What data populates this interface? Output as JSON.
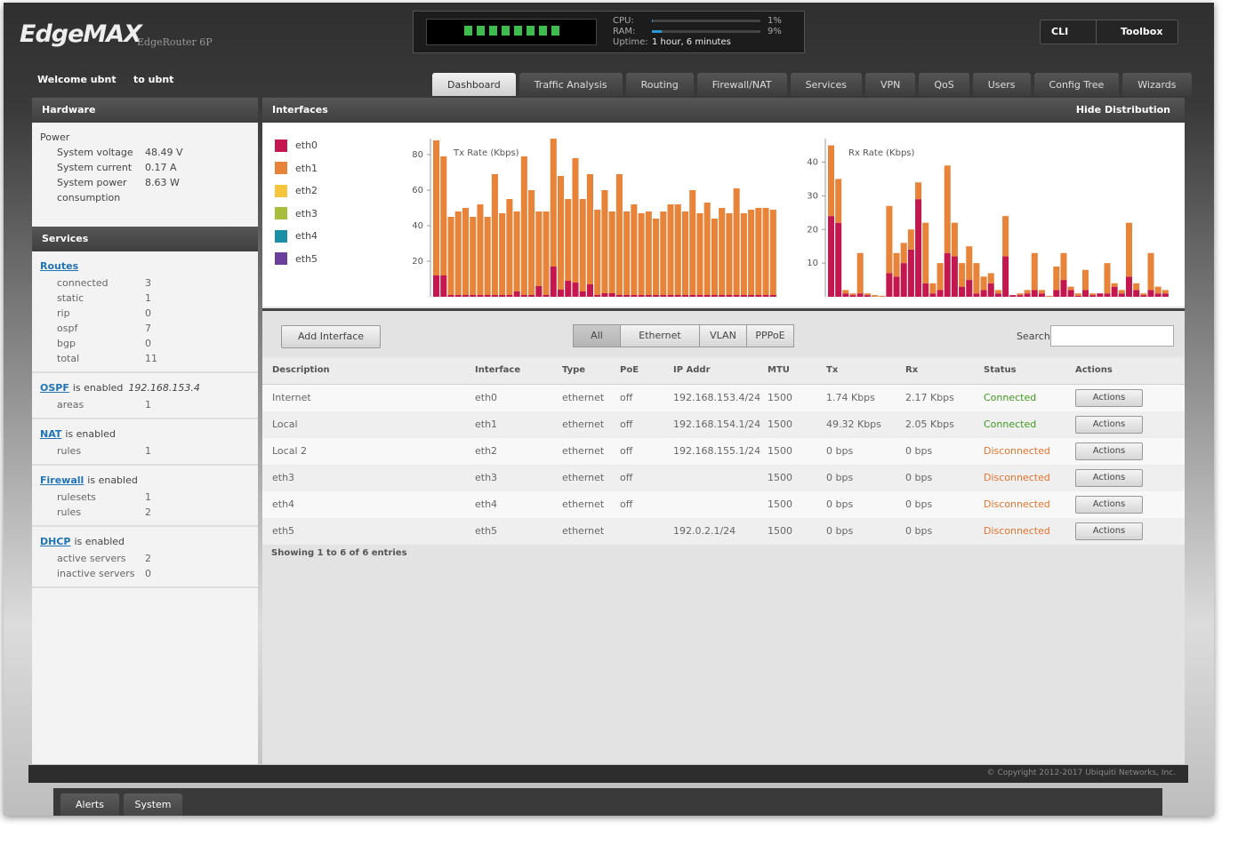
{
  "header": {
    "logo": "EdgeMAX",
    "model": "EdgeRouter 6P",
    "cpu_label": "CPU:",
    "cpu": {
      "value": 1,
      "label": "1%"
    },
    "ram_label": "RAM:",
    "ram": {
      "value": 9,
      "label": "9%"
    },
    "uptime_label": "Uptime:",
    "uptime": "1 hour, 6 minutes",
    "cli": "CLI",
    "toolbox": "Toolbox"
  },
  "nav": {
    "welcome": "Welcome ubnt",
    "to": "to ubnt",
    "tabs": [
      "Dashboard",
      "Traffic Analysis",
      "Routing",
      "Firewall/NAT",
      "Services",
      "VPN",
      "QoS",
      "Users",
      "Config Tree",
      "Wizards"
    ],
    "active": 0
  },
  "hardware": {
    "title": "Hardware",
    "power": "Power",
    "rows": [
      [
        "System voltage",
        "48.49 V"
      ],
      [
        "System current",
        "0.17 A"
      ],
      [
        "System power consumption",
        "8.63 W"
      ]
    ]
  },
  "services": {
    "title": "Services",
    "groups": [
      {
        "link": "Routes",
        "rows": [
          [
            "connected",
            3
          ],
          [
            "static",
            1
          ],
          [
            "rip",
            0
          ],
          [
            "ospf",
            7
          ],
          [
            "bgp",
            0
          ],
          [
            "total",
            11
          ]
        ]
      },
      {
        "link": "OSPF",
        "text": "is enabled",
        "extra": "192.168.153.4",
        "rows": [
          [
            "areas",
            1
          ]
        ]
      },
      {
        "link": "NAT",
        "text": "is enabled",
        "rows": [
          [
            "rules",
            1
          ]
        ]
      },
      {
        "link": "Firewall",
        "text": "is enabled",
        "rows": [
          [
            "rulesets",
            1
          ],
          [
            "rules",
            2
          ]
        ]
      },
      {
        "link": "DHCP",
        "text": "is enabled",
        "rows": [
          [
            "active servers",
            2
          ],
          [
            "inactive servers",
            0
          ]
        ]
      }
    ]
  },
  "interfaces": {
    "title": "Interfaces",
    "hide": "Hide Distribution",
    "legend": [
      {
        "name": "eth0",
        "color": "#c4174f"
      },
      {
        "name": "eth1",
        "color": "#e8843a"
      },
      {
        "name": "eth2",
        "color": "#f5c53b"
      },
      {
        "name": "eth3",
        "color": "#a8bd3a"
      },
      {
        "name": "eth4",
        "color": "#1a8fa5"
      },
      {
        "name": "eth5",
        "color": "#6b3f9c"
      }
    ]
  },
  "chart_data": [
    {
      "type": "bar",
      "stacked": true,
      "title": "Tx Rate (Kbps)",
      "ylim": [
        0,
        89
      ],
      "yticks": [
        20,
        40,
        60,
        80
      ],
      "series": [
        {
          "name": "eth0",
          "color": "#c4174f",
          "values": [
            12,
            12,
            1,
            1,
            1,
            1,
            1,
            1,
            1,
            1,
            1,
            3,
            1,
            1,
            6,
            1,
            17,
            4,
            9,
            8,
            3,
            7,
            1,
            2,
            2,
            1,
            1,
            1,
            1,
            1,
            1,
            1,
            1,
            1,
            1,
            1,
            1,
            1,
            1,
            1,
            1,
            1,
            1,
            1,
            1,
            1,
            1
          ]
        },
        {
          "name": "eth1",
          "color": "#e8843a",
          "values": [
            76,
            67,
            44,
            47,
            49,
            44,
            51,
            44,
            68,
            46,
            54,
            45,
            78,
            59,
            42,
            47,
            72,
            64,
            46,
            70,
            52,
            62,
            48,
            58,
            46,
            68,
            47,
            51,
            46,
            47,
            43,
            47,
            51,
            51,
            47,
            59,
            46,
            52,
            43,
            49,
            46,
            60,
            46,
            48,
            49,
            49,
            48
          ]
        }
      ]
    },
    {
      "type": "bar",
      "stacked": true,
      "title": "Rx Rate (Kbps)",
      "ylim": [
        0,
        47
      ],
      "yticks": [
        10,
        20,
        30,
        40
      ],
      "series": [
        {
          "name": "eth0",
          "color": "#c4174f",
          "values": [
            24,
            22,
            1,
            0.5,
            1,
            0.5,
            0,
            0,
            7,
            6,
            10,
            14,
            29,
            4,
            1,
            2,
            13,
            12,
            3,
            5,
            1,
            2,
            4,
            1,
            12,
            0.5,
            0.5,
            1,
            2,
            1,
            0,
            2,
            5,
            2,
            0.3,
            2,
            0.5,
            1,
            1,
            3,
            1,
            6,
            2,
            0.5,
            2,
            1,
            1
          ]
        },
        {
          "name": "eth1",
          "color": "#e8843a",
          "values": [
            21,
            13,
            1,
            0.5,
            12,
            0.5,
            0.5,
            0.3,
            20,
            7,
            6,
            6,
            5,
            18,
            3,
            8,
            26,
            10,
            7,
            10,
            9,
            4,
            3,
            1,
            12,
            0,
            0.5,
            1,
            11,
            1,
            0.3,
            7,
            8,
            1,
            0.7,
            6,
            0.5,
            0,
            9,
            1,
            1,
            16,
            2,
            0.5,
            11,
            2,
            1
          ]
        }
      ]
    }
  ],
  "table": {
    "add": "Add Interface",
    "filters": [
      "All",
      "Ethernet",
      "VLAN",
      "PPPoE"
    ],
    "search": "Search",
    "columns": [
      "Description",
      "Interface",
      "Type",
      "PoE",
      "IP Addr",
      "MTU",
      "Tx",
      "Rx",
      "Status",
      "Actions"
    ],
    "rows": [
      [
        "Internet",
        "eth0",
        "ethernet",
        "off",
        "192.168.153.4/24",
        1500,
        "1.74 Kbps",
        "2.17 Kbps",
        "Connected"
      ],
      [
        "Local",
        "eth1",
        "ethernet",
        "off",
        "192.168.154.1/24",
        1500,
        "49.32 Kbps",
        "2.05 Kbps",
        "Connected"
      ],
      [
        "Local 2",
        "eth2",
        "ethernet",
        "off",
        "192.168.155.1/24",
        1500,
        "0 bps",
        "0 bps",
        "Disconnected"
      ],
      [
        "eth3",
        "eth3",
        "ethernet",
        "off",
        null,
        1500,
        "0 bps",
        "0 bps",
        "Disconnected"
      ],
      [
        "eth4",
        "eth4",
        "ethernet",
        "off",
        null,
        1500,
        "0 bps",
        "0 bps",
        "Disconnected"
      ],
      [
        "eth5",
        "eth5",
        "ethernet",
        null,
        "192.0.2.1/24",
        1500,
        "0 bps",
        "0 bps",
        "Disconnected"
      ]
    ],
    "status_colors": [
      "#3f9a1f",
      "#3f9a1f",
      "#e8742c",
      "#e8742c",
      "#e8742c",
      "#e8742c"
    ],
    "action": "Actions",
    "info": "Showing 1 to 6 of 6 entries"
  },
  "footer": {
    "copyright": "© Copyright 2012-2017 Ubiquiti Networks, Inc.",
    "tabs": [
      "Alerts",
      "System"
    ]
  }
}
